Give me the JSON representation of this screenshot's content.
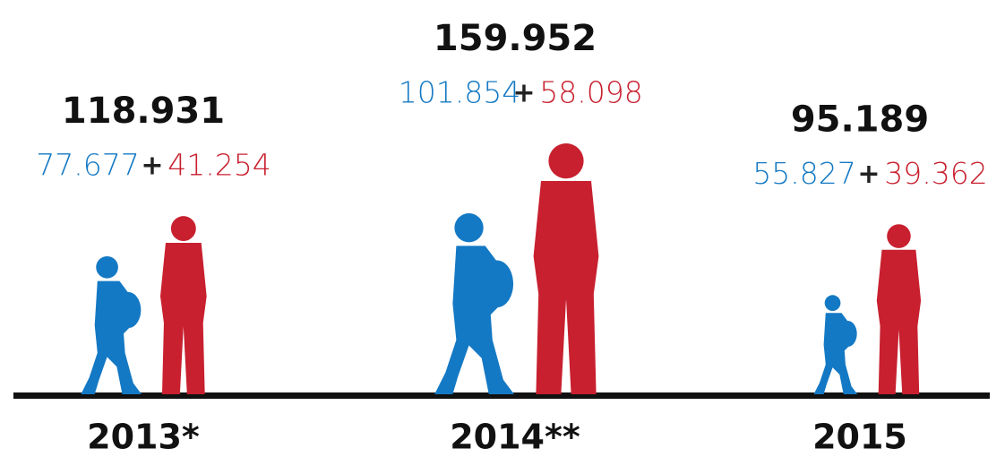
{
  "chart_data": {
    "type": "pictogram",
    "categories": [
      "2013*",
      "2014**",
      "2015"
    ],
    "values": [
      118931,
      159952,
      95189
    ],
    "value_labels": [
      "118.931",
      "159.952",
      "95.189"
    ],
    "separator": "+",
    "series": [
      {
        "color": "#1479c4",
        "values": [
          77677,
          101854,
          55827
        ],
        "value_labels": [
          "77.677",
          "101.854",
          "55.827"
        ]
      },
      {
        "color": "#c8202f",
        "values": [
          41254,
          58098,
          39362
        ],
        "value_labels": [
          "41.254",
          "58.098",
          "39.362"
        ]
      }
    ]
  }
}
